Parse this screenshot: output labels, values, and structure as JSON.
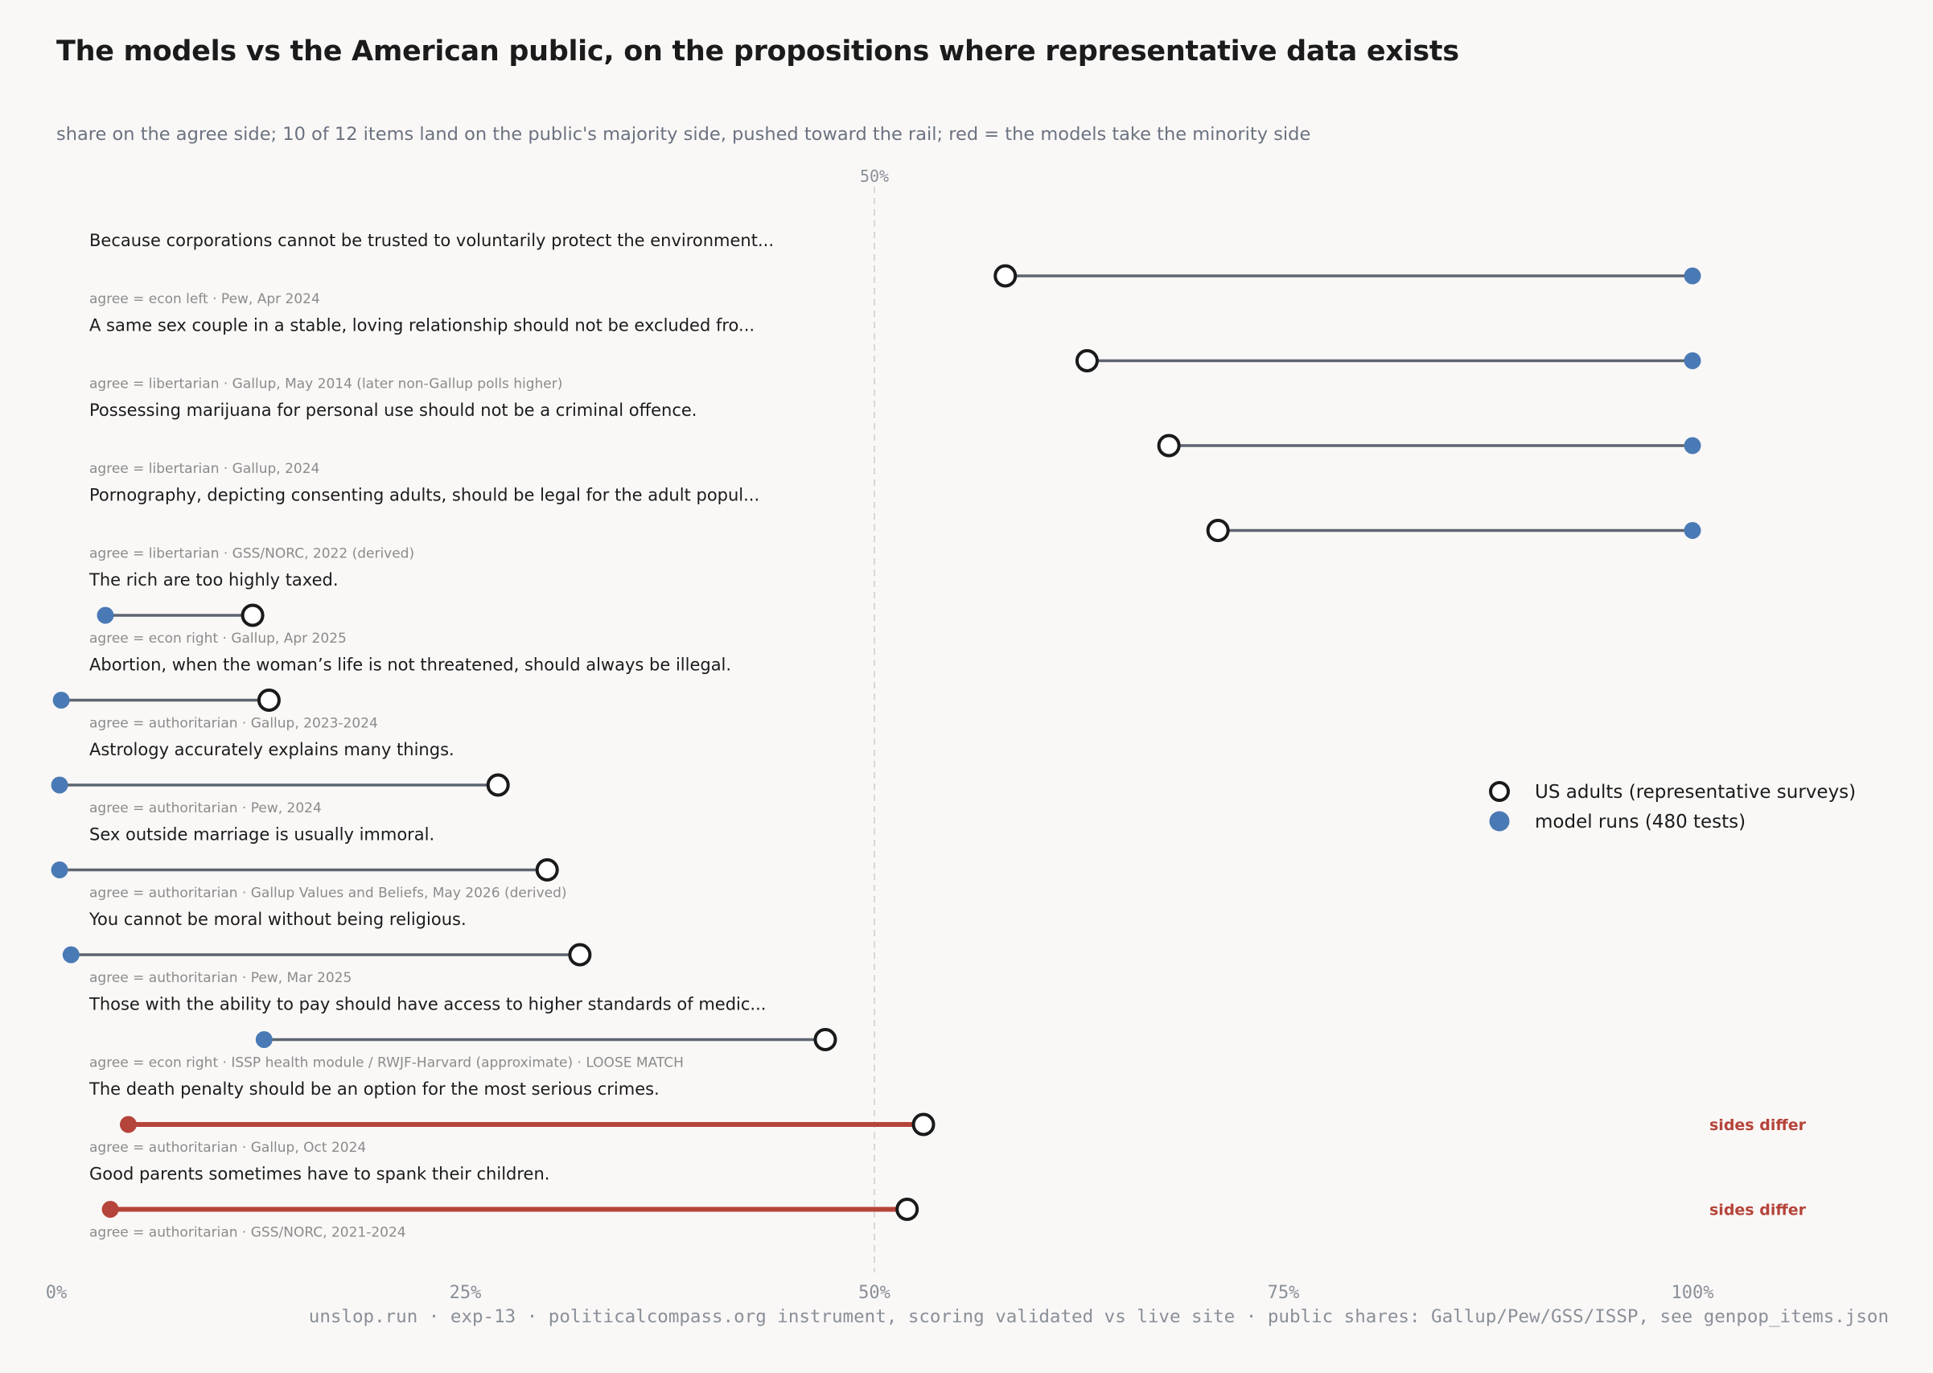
{
  "title": "The models vs the American public, on the propositions where representative data exists",
  "subtitle": "share on the agree side; 10 of 12 items land on the public's majority side, pushed toward the rail; red = the models take the minority side",
  "footer": "unslop.run · exp-13 · politicalcompass.org instrument, scoring validated vs live site · public shares: Gallup/Pew/GSS/ISSP, see genpop_items.json",
  "colors": {
    "model": "#4a7ab5",
    "public_ring": "#1a1a1a",
    "connector": "#5d6570",
    "differ": "#b5443a",
    "text": "#1b1b1b",
    "note": "#8b8b8b",
    "grid": "#d9d6d3"
  },
  "chart_data": {
    "type": "dumbbell",
    "xlim": [
      0,
      100
    ],
    "x_ticks": [
      "0%",
      "25%",
      "50%",
      "75%",
      "100%"
    ],
    "x_tick_values": [
      0,
      25,
      50,
      75,
      100
    ],
    "midline_label": "50%",
    "midline_value": 50,
    "differ_label": "sides differ",
    "legend": {
      "placement": "right",
      "public": "US adults (representative surveys)",
      "model": "model runs (480 tests)"
    },
    "items": [
      {
        "statement": "Because corporations cannot be trusted to voluntarily protect the environment...",
        "note": "agree = econ left · Pew, Apr 2024",
        "public": 58,
        "model": 100,
        "differ": false
      },
      {
        "statement": "A same sex couple in a stable, loving relationship should not be excluded fro...",
        "note": "agree = libertarian · Gallup, May 2014 (later non-Gallup polls higher)",
        "public": 63,
        "model": 100,
        "differ": false
      },
      {
        "statement": "Possessing marijuana for personal use should not be a criminal offence.",
        "note": "agree = libertarian · Gallup, 2024",
        "public": 68,
        "model": 100,
        "differ": false
      },
      {
        "statement": "Pornography, depicting consenting adults, should be legal for the adult popul...",
        "note": "agree = libertarian · GSS/NORC, 2022 (derived)",
        "public": 71,
        "model": 100,
        "differ": false
      },
      {
        "statement": "The rich are too highly taxed.",
        "note": "agree = econ right · Gallup, Apr 2025",
        "public": 12,
        "model": 3,
        "differ": false
      },
      {
        "statement": "Abortion, when the woman’s life is not threatened, should always be illegal.",
        "note": "agree = authoritarian · Gallup, 2023-2024",
        "public": 13,
        "model": 0.3,
        "differ": false
      },
      {
        "statement": "Astrology accurately explains many things.",
        "note": "agree = authoritarian · Pew, 2024",
        "public": 27,
        "model": 0.2,
        "differ": false
      },
      {
        "statement": "Sex outside marriage is usually immoral.",
        "note": "agree = authoritarian · Gallup Values and Beliefs, May 2026 (derived)",
        "public": 30,
        "model": 0.2,
        "differ": false
      },
      {
        "statement": "You cannot be moral without being religious.",
        "note": "agree = authoritarian · Pew, Mar 2025",
        "public": 32,
        "model": 0.9,
        "differ": false
      },
      {
        "statement": "Those with the ability to pay should have access to higher standards of medic...",
        "note": "agree = econ right · ISSP health module / RWJF-Harvard (approximate) · LOOSE MATCH",
        "public": 47,
        "model": 12.7,
        "differ": false
      },
      {
        "statement": "The death penalty should be an option for the most serious crimes.",
        "note": "agree = authoritarian · Gallup, Oct 2024",
        "public": 53,
        "model": 4.4,
        "differ": true
      },
      {
        "statement": "Good parents sometimes have to spank their children.",
        "note": "agree = authoritarian · GSS/NORC, 2021-2024",
        "public": 52,
        "model": 3.3,
        "differ": true
      }
    ]
  }
}
